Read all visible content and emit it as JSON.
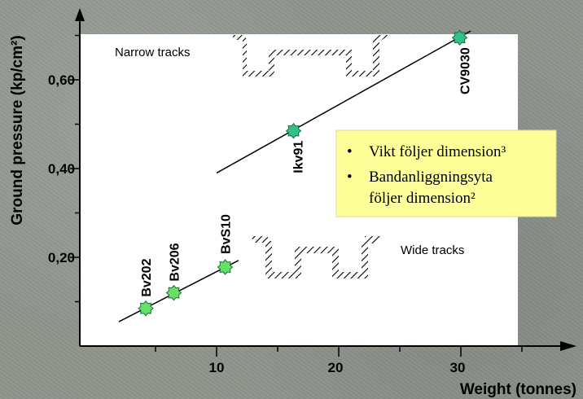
{
  "chart_data": {
    "type": "scatter",
    "xlabel": "Weight (tonnes)",
    "ylabel": "Ground pressure (kp/cm²)",
    "xlim": [
      0,
      35
    ],
    "ylim": [
      0,
      0.7
    ],
    "x_ticks": [
      {
        "value": 10,
        "label": "10"
      },
      {
        "value": 20,
        "label": "20"
      },
      {
        "value": 30,
        "label": "30"
      }
    ],
    "y_ticks": [
      {
        "value": 0.2,
        "label": "0,20"
      },
      {
        "value": 0.4,
        "label": "0,40"
      },
      {
        "value": 0.6,
        "label": "0,60"
      }
    ],
    "groups": [
      {
        "name": "Wide tracks",
        "marker_color": "#66e066",
        "points": [
          {
            "label": "Bv202",
            "x": 4.2,
            "y": 0.085
          },
          {
            "label": "Bv206",
            "x": 6.5,
            "y": 0.12
          },
          {
            "label": "BvS10",
            "x": 10.7,
            "y": 0.178
          }
        ],
        "fit": {
          "x": [
            2.0,
            11.8
          ],
          "y": [
            0.055,
            0.193
          ]
        }
      },
      {
        "name": "Narrow tracks",
        "marker_color": "#33bf8c",
        "points": [
          {
            "label": "Ikv91",
            "x": 16.3,
            "y": 0.485
          },
          {
            "label": "CV9030",
            "x": 29.9,
            "y": 0.695
          }
        ],
        "fit": {
          "x": [
            10.0,
            30.8
          ],
          "y": [
            0.39,
            0.71
          ]
        }
      }
    ],
    "annotations": {
      "notes": [
        "Vikt följer dimension³",
        "Bandanliggningsyta",
        "följer dimension²"
      ]
    },
    "colors": {
      "background": "#8f948d",
      "plot_area": "#ffffff",
      "note_box": "#ffff99",
      "fit_line": "#000000"
    }
  }
}
